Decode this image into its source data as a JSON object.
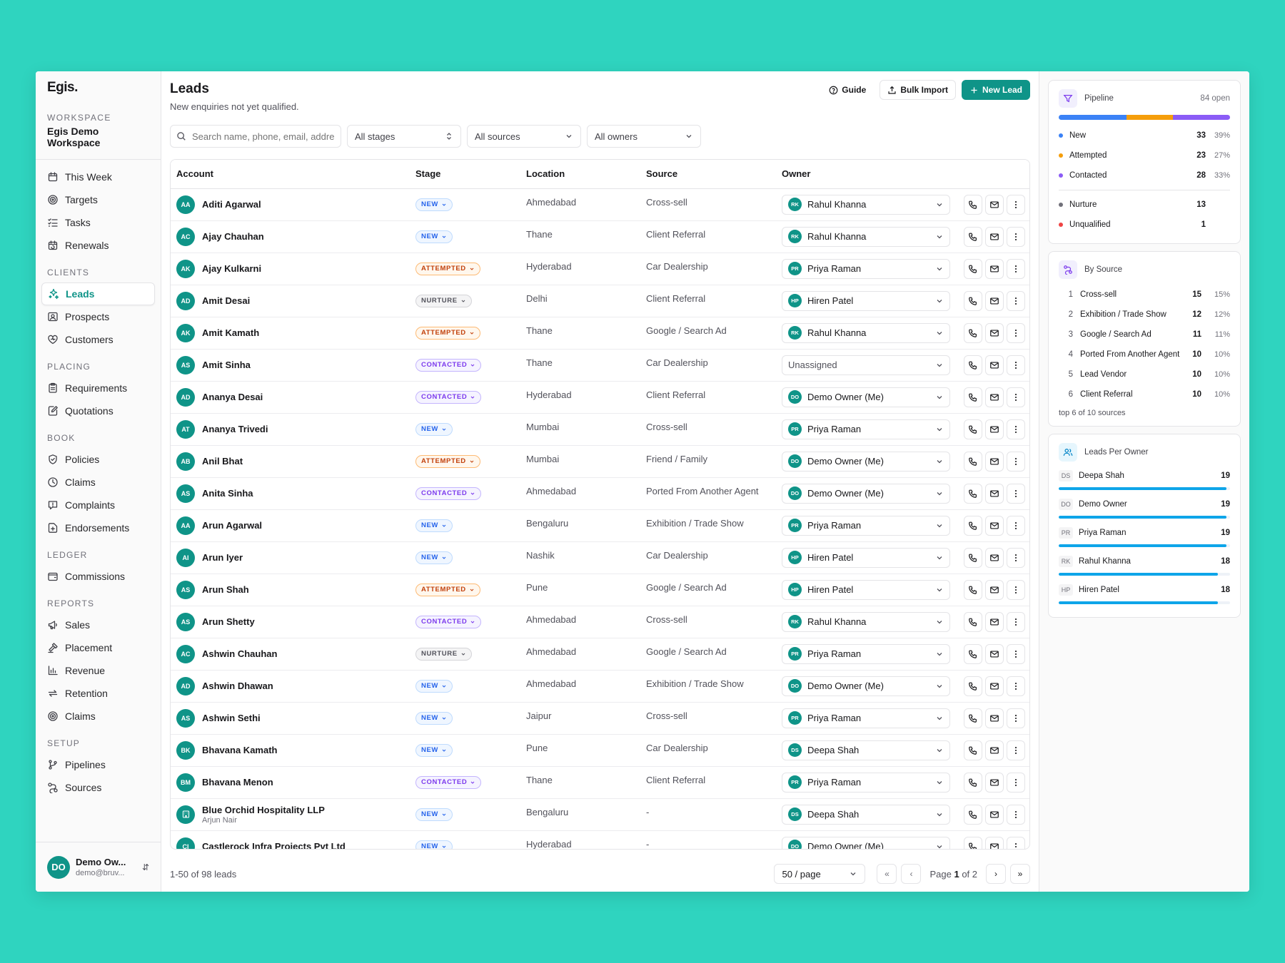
{
  "sidebar": {
    "brand": "Egis.",
    "workspace_label": "WORKSPACE",
    "workspace_name": "Egis Demo Workspace",
    "top_items": [
      {
        "label": "This Week",
        "icon": "calendar-icon"
      },
      {
        "label": "Targets",
        "icon": "target-icon"
      },
      {
        "label": "Tasks",
        "icon": "tasks-icon"
      },
      {
        "label": "Renewals",
        "icon": "calendar-refresh-icon"
      }
    ],
    "sections": [
      {
        "title": "CLIENTS",
        "items": [
          {
            "label": "Leads",
            "icon": "sparkle-icon",
            "active": true
          },
          {
            "label": "Prospects",
            "icon": "contact-card-icon"
          },
          {
            "label": "Customers",
            "icon": "heart-icon"
          }
        ]
      },
      {
        "title": "PLACING",
        "items": [
          {
            "label": "Requirements",
            "icon": "clipboard-icon"
          },
          {
            "label": "Quotations",
            "icon": "edit-doc-icon"
          }
        ]
      },
      {
        "title": "BOOK",
        "items": [
          {
            "label": "Policies",
            "icon": "shield-icon"
          },
          {
            "label": "Claims",
            "icon": "clock-icon"
          },
          {
            "label": "Complaints",
            "icon": "message-alert-icon"
          },
          {
            "label": "Endorsements",
            "icon": "file-plus-icon"
          }
        ]
      },
      {
        "title": "LEDGER",
        "items": [
          {
            "label": "Commissions",
            "icon": "wallet-icon"
          }
        ]
      },
      {
        "title": "REPORTS",
        "items": [
          {
            "label": "Sales",
            "icon": "megaphone-icon"
          },
          {
            "label": "Placement",
            "icon": "gavel-icon"
          },
          {
            "label": "Revenue",
            "icon": "bar-chart-icon"
          },
          {
            "label": "Retention",
            "icon": "repeat-icon"
          },
          {
            "label": "Claims",
            "icon": "target-icon"
          }
        ]
      },
      {
        "title": "SETUP",
        "items": [
          {
            "label": "Pipelines",
            "icon": "branch-icon"
          },
          {
            "label": "Sources",
            "icon": "nodes-icon"
          }
        ]
      }
    ],
    "user": {
      "initials": "DO",
      "name": "Demo Ow...",
      "email": "demo@bruv..."
    }
  },
  "header": {
    "title": "Leads",
    "subtitle": "New enquiries not yet qualified.",
    "guide_label": "Guide",
    "bulk_import_label": "Bulk Import",
    "new_lead_label": "New Lead"
  },
  "filters": {
    "search_placeholder": "Search name, phone, email, address",
    "stage": "All stages",
    "source": "All sources",
    "owner": "All owners"
  },
  "table": {
    "columns": [
      "Account",
      "Stage",
      "Location",
      "Source",
      "Owner"
    ],
    "rows": [
      {
        "initials": "AA",
        "name": "Aditi Agarwal",
        "stage": "NEW",
        "location": "Ahmedabad",
        "source": "Cross-sell",
        "owner_initials": "RK",
        "owner": "Rahul Khanna"
      },
      {
        "initials": "AC",
        "name": "Ajay Chauhan",
        "stage": "NEW",
        "location": "Thane",
        "source": "Client Referral",
        "owner_initials": "RK",
        "owner": "Rahul Khanna"
      },
      {
        "initials": "AK",
        "name": "Ajay Kulkarni",
        "stage": "ATTEMPTED",
        "location": "Hyderabad",
        "source": "Car Dealership",
        "owner_initials": "PR",
        "owner": "Priya Raman"
      },
      {
        "initials": "AD",
        "name": "Amit Desai",
        "stage": "NURTURE",
        "location": "Delhi",
        "source": "Client Referral",
        "owner_initials": "HP",
        "owner": "Hiren Patel"
      },
      {
        "initials": "AK",
        "name": "Amit Kamath",
        "stage": "ATTEMPTED",
        "location": "Thane",
        "source": "Google / Search Ad",
        "owner_initials": "RK",
        "owner": "Rahul Khanna"
      },
      {
        "initials": "AS",
        "name": "Amit Sinha",
        "stage": "CONTACTED",
        "location": "Thane",
        "source": "Car Dealership",
        "owner_initials": "",
        "owner": "Unassigned"
      },
      {
        "initials": "AD",
        "name": "Ananya Desai",
        "stage": "CONTACTED",
        "location": "Hyderabad",
        "source": "Client Referral",
        "owner_initials": "DO",
        "owner": "Demo Owner (Me)"
      },
      {
        "initials": "AT",
        "name": "Ananya Trivedi",
        "stage": "NEW",
        "location": "Mumbai",
        "source": "Cross-sell",
        "owner_initials": "PR",
        "owner": "Priya Raman"
      },
      {
        "initials": "AB",
        "name": "Anil Bhat",
        "stage": "ATTEMPTED",
        "location": "Mumbai",
        "source": "Friend / Family",
        "owner_initials": "DO",
        "owner": "Demo Owner (Me)"
      },
      {
        "initials": "AS",
        "name": "Anita Sinha",
        "stage": "CONTACTED",
        "location": "Ahmedabad",
        "source": "Ported From Another Agent",
        "owner_initials": "DO",
        "owner": "Demo Owner (Me)"
      },
      {
        "initials": "AA",
        "name": "Arun Agarwal",
        "stage": "NEW",
        "location": "Bengaluru",
        "source": "Exhibition / Trade Show",
        "owner_initials": "PR",
        "owner": "Priya Raman"
      },
      {
        "initials": "AI",
        "name": "Arun Iyer",
        "stage": "NEW",
        "location": "Nashik",
        "source": "Car Dealership",
        "owner_initials": "HP",
        "owner": "Hiren Patel"
      },
      {
        "initials": "AS",
        "name": "Arun Shah",
        "stage": "ATTEMPTED",
        "location": "Pune",
        "source": "Google / Search Ad",
        "owner_initials": "HP",
        "owner": "Hiren Patel"
      },
      {
        "initials": "AS",
        "name": "Arun Shetty",
        "stage": "CONTACTED",
        "location": "Ahmedabad",
        "source": "Cross-sell",
        "owner_initials": "RK",
        "owner": "Rahul Khanna"
      },
      {
        "initials": "AC",
        "name": "Ashwin Chauhan",
        "stage": "NURTURE",
        "location": "Ahmedabad",
        "source": "Google / Search Ad",
        "owner_initials": "PR",
        "owner": "Priya Raman"
      },
      {
        "initials": "AD",
        "name": "Ashwin Dhawan",
        "stage": "NEW",
        "location": "Ahmedabad",
        "source": "Exhibition / Trade Show",
        "owner_initials": "DO",
        "owner": "Demo Owner (Me)"
      },
      {
        "initials": "AS",
        "name": "Ashwin Sethi",
        "stage": "NEW",
        "location": "Jaipur",
        "source": "Cross-sell",
        "owner_initials": "PR",
        "owner": "Priya Raman"
      },
      {
        "initials": "BK",
        "name": "Bhavana Kamath",
        "stage": "NEW",
        "location": "Pune",
        "source": "Car Dealership",
        "owner_initials": "DS",
        "owner": "Deepa Shah"
      },
      {
        "initials": "BM",
        "name": "Bhavana Menon",
        "stage": "CONTACTED",
        "location": "Thane",
        "source": "Client Referral",
        "owner_initials": "PR",
        "owner": "Priya Raman"
      },
      {
        "initials": "building-icon",
        "name": "Blue Orchid Hospitality LLP",
        "sub": "Arjun Nair",
        "stage": "NEW",
        "location": "Bengaluru",
        "source": "-",
        "owner_initials": "DS",
        "owner": "Deepa Shah"
      },
      {
        "initials": "CI",
        "name": "Castlerock Infra Projects Pvt Ltd",
        "stage": "NEW",
        "location": "Hyderabad",
        "source": "-",
        "owner_initials": "DO",
        "owner": "Demo Owner (Me)"
      }
    ]
  },
  "footer": {
    "count_text": "1-50 of 98 leads",
    "per_page": "50 / page",
    "page_prefix": "Page ",
    "page_current": "1",
    "page_suffix": " of 2"
  },
  "pipeline": {
    "title": "Pipeline",
    "open_text": "84 open",
    "segments": [
      {
        "label": "New",
        "count": "33",
        "pct": "39%",
        "color": "#3b82f6",
        "share": 39
      },
      {
        "label": "Attempted",
        "count": "23",
        "pct": "27%",
        "color": "#f59e0b",
        "share": 27
      },
      {
        "label": "Contacted",
        "count": "28",
        "pct": "33%",
        "color": "#8b5cf6",
        "share": 33
      }
    ],
    "others": [
      {
        "label": "Nurture",
        "count": "13",
        "color": "#71717a"
      },
      {
        "label": "Unqualified",
        "count": "1",
        "color": "#ef4444"
      }
    ]
  },
  "by_source": {
    "title": "By Source",
    "rows": [
      {
        "rank": "1",
        "label": "Cross-sell",
        "count": "15",
        "pct": "15%"
      },
      {
        "rank": "2",
        "label": "Exhibition / Trade Show",
        "count": "12",
        "pct": "12%"
      },
      {
        "rank": "3",
        "label": "Google / Search Ad",
        "count": "11",
        "pct": "11%"
      },
      {
        "rank": "4",
        "label": "Ported From Another Agent",
        "count": "10",
        "pct": "10%"
      },
      {
        "rank": "5",
        "label": "Lead Vendor",
        "count": "10",
        "pct": "10%"
      },
      {
        "rank": "6",
        "label": "Client Referral",
        "count": "10",
        "pct": "10%"
      }
    ],
    "footer": "top 6 of 10 sources"
  },
  "per_owner": {
    "title": "Leads Per Owner",
    "max": 19,
    "rows": [
      {
        "initials": "DS",
        "name": "Deepa Shah",
        "count": "19",
        "value": 19
      },
      {
        "initials": "DO",
        "name": "Demo Owner",
        "count": "19",
        "value": 19
      },
      {
        "initials": "PR",
        "name": "Priya Raman",
        "count": "19",
        "value": 19
      },
      {
        "initials": "RK",
        "name": "Rahul Khanna",
        "count": "18",
        "value": 18
      },
      {
        "initials": "HP",
        "name": "Hiren Patel",
        "count": "18",
        "value": 18
      }
    ]
  }
}
